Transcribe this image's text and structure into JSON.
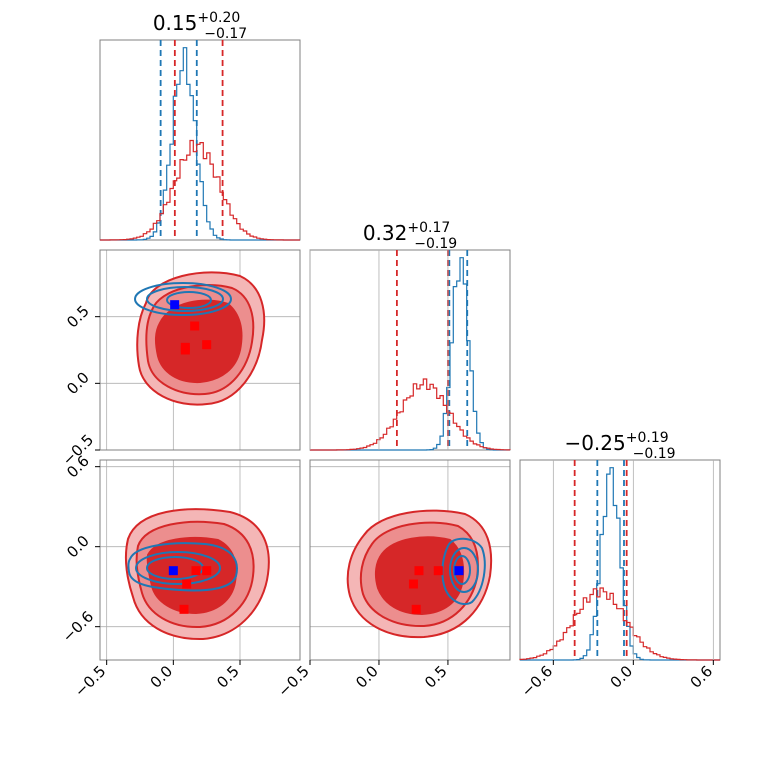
{
  "figure": {
    "type": "corner-plot"
  },
  "colors": {
    "posterior_a": "#d62728",
    "posterior_b": "#1f77b4",
    "marker_a": "#ff0000",
    "marker_b": "#0000ff",
    "grid": "#b0b0b0",
    "axes": "#808080"
  },
  "chart_data": [
    {
      "type": "histogram",
      "panel": "diagonal-1",
      "title": {
        "value": "0.15",
        "plus": "+0.20",
        "minus": "−0.17"
      },
      "xlim": [
        -0.6,
        0.95
      ],
      "series": [
        {
          "color": "#1f77b4",
          "mean": 0.05,
          "sd": 0.09,
          "quantiles": [
            -0.13,
            0.15
          ]
        },
        {
          "color": "#d62728",
          "mean": 0.15,
          "sd": 0.17,
          "quantiles": [
            -0.02,
            0.35
          ]
        }
      ]
    },
    {
      "type": "contour",
      "panel": "row2-col1",
      "xlim": [
        -0.55,
        0.95
      ],
      "ylim": [
        -0.5,
        1.0
      ],
      "yticks": [
        0.5,
        0.0,
        -0.5
      ],
      "yticklabels": [
        "0.5",
        "0.0",
        "−0.5"
      ],
      "red_markers": [
        [
          0.16,
          0.43
        ],
        [
          0.09,
          0.27
        ],
        [
          0.09,
          0.25
        ],
        [
          0.25,
          0.29
        ]
      ],
      "blue_markers": [
        [
          0.01,
          0.59
        ]
      ]
    },
    {
      "type": "histogram",
      "panel": "diagonal-2",
      "title": {
        "value": "0.32",
        "plus": "+0.17",
        "minus": "−0.19"
      },
      "xlim": [
        -0.5,
        0.95
      ],
      "series": [
        {
          "color": "#1f77b4",
          "mean": 0.59,
          "sd": 0.06,
          "quantiles": [
            0.51,
            0.64
          ]
        },
        {
          "color": "#d62728",
          "mean": 0.33,
          "sd": 0.17,
          "quantiles": [
            0.13,
            0.5
          ]
        }
      ]
    },
    {
      "type": "contour",
      "panel": "row3-col1",
      "xlim": [
        -0.55,
        0.95
      ],
      "ylim": [
        -0.85,
        0.65
      ],
      "xticks": [
        -0.5,
        0.0,
        0.5
      ],
      "xticklabels": [
        "−0.5",
        "0.0",
        "0.5"
      ],
      "yticks": [
        0.6,
        0.0,
        -0.6
      ],
      "yticklabels": [
        "0.6",
        "0.0",
        "−0.6"
      ],
      "red_markers": [
        [
          0.17,
          -0.18
        ],
        [
          0.25,
          -0.18
        ],
        [
          0.1,
          -0.28
        ],
        [
          0.08,
          -0.47
        ]
      ],
      "blue_markers": [
        [
          0.0,
          -0.18
        ]
      ]
    },
    {
      "type": "contour",
      "panel": "row3-col2",
      "xlim": [
        -0.5,
        0.95
      ],
      "ylim": [
        -0.85,
        0.65
      ],
      "xticks": [
        -0.5,
        0.0,
        0.5
      ],
      "xticklabels": [
        "−0.5",
        "0.0",
        "0.5"
      ],
      "red_markers": [
        [
          0.29,
          -0.18
        ],
        [
          0.43,
          -0.18
        ],
        [
          0.25,
          -0.28
        ],
        [
          0.27,
          -0.47
        ]
      ],
      "blue_markers": [
        [
          0.58,
          -0.18
        ]
      ]
    },
    {
      "type": "histogram",
      "panel": "diagonal-3",
      "title": {
        "value": "−0.25",
        "plus": "+0.19",
        "minus": "−0.19"
      },
      "xlim": [
        -0.85,
        0.65
      ],
      "xticks": [
        -0.6,
        0.0,
        0.6
      ],
      "xticklabels": [
        "−0.6",
        "0.0",
        "0.6"
      ],
      "series": [
        {
          "color": "#1f77b4",
          "mean": -0.17,
          "sd": 0.07,
          "quantiles": [
            -0.27,
            -0.07
          ]
        },
        {
          "color": "#d62728",
          "mean": -0.25,
          "sd": 0.19,
          "quantiles": [
            -0.44,
            -0.05
          ]
        }
      ]
    }
  ]
}
